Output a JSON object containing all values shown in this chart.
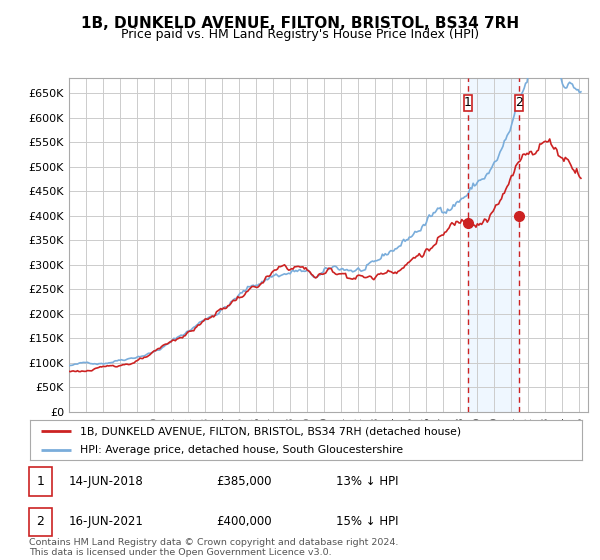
{
  "title": "1B, DUNKELD AVENUE, FILTON, BRISTOL, BS34 7RH",
  "subtitle": "Price paid vs. HM Land Registry's House Price Index (HPI)",
  "ylim": [
    0,
    680000
  ],
  "yticks": [
    0,
    50000,
    100000,
    150000,
    200000,
    250000,
    300000,
    350000,
    400000,
    450000,
    500000,
    550000,
    600000,
    650000
  ],
  "ytick_labels": [
    "£0",
    "£50K",
    "£100K",
    "£150K",
    "£200K",
    "£250K",
    "£300K",
    "£350K",
    "£400K",
    "£450K",
    "£500K",
    "£550K",
    "£600K",
    "£650K"
  ],
  "hpi_color": "#7aaddb",
  "property_color": "#cc2222",
  "vline_color": "#cc2222",
  "vline1_year": 2018.45,
  "vline2_year": 2021.45,
  "sale1_year": 2018.45,
  "sale1_value": 385000,
  "sale2_year": 2021.45,
  "sale2_value": 400000,
  "legend_label1": "1B, DUNKELD AVENUE, FILTON, BRISTOL, BS34 7RH (detached house)",
  "legend_label2": "HPI: Average price, detached house, South Gloucestershire",
  "table_row1": [
    "1",
    "14-JUN-2018",
    "£385,000",
    "13% ↓ HPI"
  ],
  "table_row2": [
    "2",
    "16-JUN-2021",
    "£400,000",
    "15% ↓ HPI"
  ],
  "footnote": "Contains HM Land Registry data © Crown copyright and database right 2024.\nThis data is licensed under the Open Government Licence v3.0.",
  "bg_color": "#ffffff",
  "grid_color": "#cccccc",
  "shade_color": "#ddeeff",
  "xlim_start": 1995,
  "xlim_end": 2025.5
}
